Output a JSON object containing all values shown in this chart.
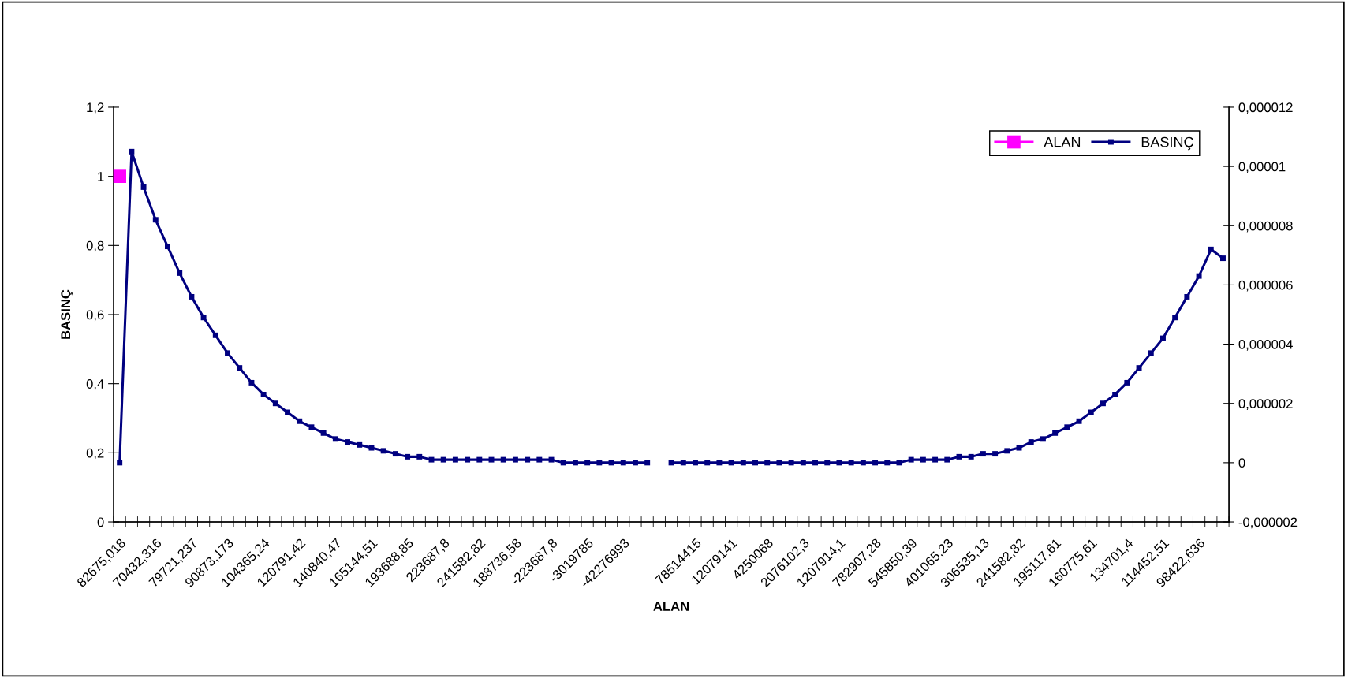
{
  "chart_data": {
    "type": "line",
    "xlabel": "ALAN",
    "ylabel": "BASINÇ",
    "categories": [
      "82675,018",
      null,
      null,
      "70432,316",
      null,
      null,
      "79721,237",
      null,
      null,
      "90873,173",
      null,
      null,
      "104365,24",
      null,
      null,
      "120791,42",
      null,
      null,
      "140840,47",
      null,
      null,
      "165144,51",
      null,
      null,
      "193688,85",
      null,
      null,
      "223687,8",
      null,
      null,
      "241582,82",
      null,
      null,
      "188736,58",
      null,
      null,
      "-223687,8",
      null,
      null,
      "-3019785",
      null,
      null,
      "-42276993",
      null,
      null,
      null,
      null,
      null,
      "78514415",
      null,
      null,
      "12079141",
      null,
      null,
      "4250068",
      null,
      null,
      "2076102,3",
      null,
      null,
      "1207914,1",
      null,
      null,
      "782907,28",
      null,
      null,
      "545850,39",
      null,
      null,
      "401065,23",
      null,
      null,
      "306535,13",
      null,
      null,
      "241582,82",
      null,
      null,
      "195117,61",
      null,
      null,
      "160775,61",
      null,
      null,
      "134701,4",
      null,
      null,
      "114452,51",
      null,
      null,
      "98422,636",
      null,
      null
    ],
    "series": [
      {
        "name": "ALAN",
        "color": "#ff00ff",
        "values": [
          1,
          null,
          null,
          null,
          null,
          null,
          null,
          null,
          null,
          null,
          null,
          null,
          null,
          null,
          null,
          null,
          null,
          null,
          null,
          null,
          null,
          null,
          null,
          null,
          null,
          null,
          null,
          null,
          null,
          null,
          null,
          null,
          null,
          null,
          null,
          null,
          null,
          null,
          null,
          null,
          null,
          null,
          null,
          null,
          null,
          null,
          null,
          null,
          null,
          null,
          null,
          null,
          null,
          null,
          null,
          null,
          null,
          null,
          null,
          null,
          null,
          null,
          null,
          null,
          null,
          null,
          null,
          null,
          null,
          null,
          null,
          null,
          null,
          null,
          null,
          null,
          null,
          null,
          null,
          null,
          null,
          null,
          null,
          null,
          null,
          null,
          null,
          null,
          null,
          null,
          null,
          null,
          null
        ]
      },
      {
        "name": "BASINÇ",
        "color": "#000080",
        "axis": "y2",
        "values": [
          0,
          1.05e-05,
          9.3e-06,
          8.2e-06,
          7.3e-06,
          6.4e-06,
          5.6e-06,
          4.9e-06,
          4.3e-06,
          3.7e-06,
          3.2e-06,
          2.7e-06,
          2.3e-06,
          2e-06,
          1.7e-06,
          1.4e-06,
          1.2e-06,
          1e-06,
          8e-07,
          7e-07,
          6e-07,
          5e-07,
          4e-07,
          3e-07,
          2e-07,
          2e-07,
          1e-07,
          1e-07,
          1e-07,
          1e-07,
          1e-07,
          1e-07,
          1e-07,
          1e-07,
          1e-07,
          1e-07,
          1e-07,
          0,
          0,
          0,
          0,
          0,
          0,
          0,
          0,
          null,
          0,
          0,
          0,
          0,
          0,
          0,
          0,
          0,
          0,
          0,
          0,
          0,
          0,
          0,
          0,
          0,
          0,
          0,
          0,
          0,
          1e-07,
          1e-07,
          1e-07,
          1e-07,
          2e-07,
          2e-07,
          3e-07,
          3e-07,
          4e-07,
          5e-07,
          7e-07,
          8e-07,
          1e-06,
          1.2e-06,
          1.4e-06,
          1.7e-06,
          2e-06,
          2.3e-06,
          2.7e-06,
          3.2e-06,
          3.7e-06,
          4.2e-06,
          4.9e-06,
          5.6e-06,
          6.3e-06,
          7.2e-06,
          6.9e-06
        ]
      }
    ],
    "ylim": [
      0,
      1.2
    ],
    "yticks": [
      0,
      {
        "value": 0.2,
        "label": "0,2"
      },
      {
        "value": 0.4,
        "label": "0,4"
      },
      {
        "value": 0.6,
        "label": "0,6"
      },
      {
        "value": 0.8,
        "label": "0,8"
      },
      1,
      {
        "value": 1.2,
        "label": "1,2"
      }
    ],
    "y2lim": [
      -2e-06,
      1.2e-05
    ],
    "y2ticks": [
      {
        "value": -2e-06,
        "label": "-0,000002"
      },
      0,
      {
        "value": 2e-06,
        "label": "0,000002"
      },
      {
        "value": 4e-06,
        "label": "0,000004"
      },
      {
        "value": 6e-06,
        "label": "0,000006"
      },
      {
        "value": 8e-06,
        "label": "0,000008"
      },
      {
        "value": 1e-05,
        "label": "0,00001"
      },
      {
        "value": 1.2e-05,
        "label": "0,000012"
      }
    ],
    "grid": false,
    "legend": "top right",
    "marker": "square",
    "line_style": "solid"
  }
}
